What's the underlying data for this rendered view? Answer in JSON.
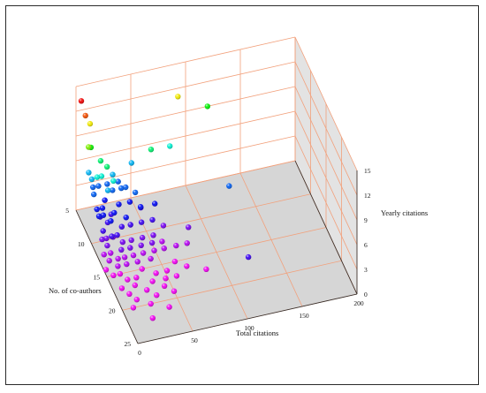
{
  "chart_data": {
    "type": "scatter",
    "projection": "3d",
    "title": "",
    "xlabel": "Total citations",
    "ylabel": "No. of co-authors",
    "zlabel": "Yearly citations",
    "xlim": [
      0,
      200
    ],
    "ylim": [
      5,
      25
    ],
    "zlim": [
      0,
      15
    ],
    "xticks": [
      "0",
      "50",
      "100",
      "150",
      "200"
    ],
    "yticks": [
      "5",
      "10",
      "15",
      "20",
      "25"
    ],
    "zticks": [
      "0",
      "3",
      "6",
      "9",
      "12",
      "15"
    ],
    "grid": true,
    "colormap": "yearly citations: magenta (low) to blue, cyan, green, yellow, red (high)",
    "colors": {
      "grid": "#f2a07b",
      "floor": "#d6d6d6",
      "wall": "#e3e3e3",
      "frame": "#2a2a2a"
    },
    "points": [
      [
        2,
        6,
        14
      ],
      [
        3,
        7,
        13
      ],
      [
        10,
        6,
        11
      ],
      [
        93,
        5,
        11
      ],
      [
        3,
        8,
        10
      ],
      [
        8,
        7,
        9
      ],
      [
        120,
        5,
        9
      ],
      [
        60,
        8,
        8
      ],
      [
        80,
        7,
        7
      ],
      [
        17,
        9,
        8
      ],
      [
        14,
        8,
        8
      ],
      [
        45,
        7,
        6
      ],
      [
        6,
        7,
        6
      ],
      [
        6,
        8,
        6
      ],
      [
        12,
        9,
        7
      ],
      [
        8,
        9,
        7
      ],
      [
        20,
        10,
        7
      ],
      [
        15,
        10,
        6
      ],
      [
        25,
        8,
        6
      ],
      [
        22,
        9,
        5
      ],
      [
        7,
        8,
        5
      ],
      [
        30,
        8,
        5
      ],
      [
        34,
        9,
        5
      ],
      [
        12,
        8,
        5
      ],
      [
        5,
        9,
        5
      ],
      [
        30,
        9,
        5
      ],
      [
        20,
        8,
        5
      ],
      [
        40,
        10,
        5
      ],
      [
        120,
        12,
        5
      ],
      [
        5,
        10,
        4
      ],
      [
        10,
        10,
        4
      ],
      [
        15,
        9,
        4
      ],
      [
        18,
        11,
        4
      ],
      [
        25,
        10,
        4
      ],
      [
        35,
        10,
        4
      ],
      [
        4,
        11,
        4
      ],
      [
        8,
        11,
        4
      ],
      [
        12,
        12,
        4
      ],
      [
        26,
        12,
        4
      ],
      [
        42,
        11,
        4
      ],
      [
        55,
        11,
        4
      ],
      [
        8,
        10,
        3
      ],
      [
        12,
        11,
        3
      ],
      [
        18,
        10,
        3
      ],
      [
        22,
        12,
        3
      ],
      [
        30,
        12,
        3
      ],
      [
        40,
        12,
        3
      ],
      [
        45,
        10,
        3
      ],
      [
        15,
        13,
        3
      ],
      [
        5,
        12,
        3
      ],
      [
        10,
        13,
        3
      ],
      [
        50,
        12,
        3
      ],
      [
        115,
        20,
        3
      ],
      [
        4,
        12,
        2
      ],
      [
        8,
        12,
        2
      ],
      [
        14,
        12,
        2
      ],
      [
        20,
        13,
        2
      ],
      [
        28,
        13,
        2
      ],
      [
        38,
        13,
        2
      ],
      [
        48,
        13,
        2
      ],
      [
        6,
        13,
        2
      ],
      [
        16,
        14,
        2
      ],
      [
        24,
        14,
        2
      ],
      [
        34,
        14,
        2
      ],
      [
        44,
        14,
        2
      ],
      [
        60,
        12,
        2
      ],
      [
        80,
        13,
        2
      ],
      [
        3,
        13,
        1
      ],
      [
        9,
        13,
        1
      ],
      [
        13,
        14,
        1
      ],
      [
        19,
        14,
        1
      ],
      [
        27,
        14,
        1
      ],
      [
        36,
        14,
        1
      ],
      [
        46,
        14,
        1
      ],
      [
        56,
        13,
        1
      ],
      [
        66,
        14,
        1
      ],
      [
        76,
        14,
        1
      ],
      [
        5,
        14,
        1
      ],
      [
        10,
        15,
        1
      ],
      [
        18,
        15,
        1
      ],
      [
        28,
        15,
        1
      ],
      [
        40,
        15,
        1
      ],
      [
        55,
        14,
        1
      ],
      [
        2,
        14,
        0
      ],
      [
        6,
        15,
        0
      ],
      [
        12,
        15,
        0
      ],
      [
        16,
        16,
        0
      ],
      [
        24,
        16,
        0
      ],
      [
        32,
        15,
        0
      ],
      [
        42,
        16,
        0
      ],
      [
        52,
        16,
        0
      ],
      [
        62,
        15,
        0
      ],
      [
        8,
        17,
        0
      ],
      [
        20,
        17,
        0
      ],
      [
        36,
        17,
        0
      ],
      [
        48,
        17,
        0
      ],
      [
        70,
        16,
        0
      ],
      [
        12,
        18,
        0
      ],
      [
        28,
        18,
        0
      ],
      [
        44,
        18,
        0
      ],
      [
        58,
        17,
        0
      ],
      [
        85,
        17,
        0
      ],
      [
        16,
        19,
        0
      ],
      [
        34,
        19,
        0
      ],
      [
        50,
        19,
        0
      ],
      [
        10,
        20,
        0
      ],
      [
        26,
        20,
        0
      ],
      [
        40,
        21,
        0
      ],
      [
        22,
        22,
        0
      ]
    ]
  }
}
